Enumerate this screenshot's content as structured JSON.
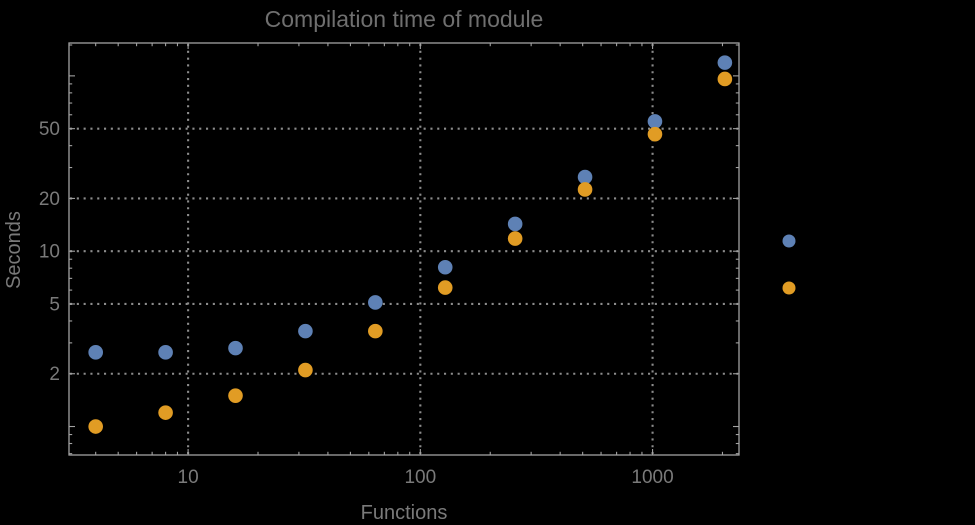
{
  "page": {
    "background": "#000000"
  },
  "colors": {
    "background": "#000000",
    "frame": "#a2a2a2",
    "grid": "#8c8c8c",
    "tick_text": "#7a7a7a",
    "title_text": "#6f6f6f",
    "series1": "#5e81b5",
    "series2": "#e19c24"
  },
  "chart_data": {
    "type": "scatter",
    "title": "Compilation time of module",
    "xlabel": "Functions",
    "ylabel": "Seconds",
    "xscale": "log",
    "yscale": "log",
    "xlim": [
      3.07,
      2356
    ],
    "ylim": [
      0.688,
      154
    ],
    "x": [
      4,
      8,
      16,
      32,
      64,
      128,
      256,
      512,
      1024,
      2048
    ],
    "series": [
      {
        "name": "series-1-blue",
        "color": "#5e81b5",
        "values": [
          2.65,
          2.65,
          2.8,
          3.5,
          5.1,
          8.1,
          14.3,
          26.5,
          55,
          119
        ]
      },
      {
        "name": "series-2-orange",
        "color": "#e19c24",
        "values": [
          1.0,
          1.2,
          1.5,
          2.1,
          3.5,
          6.2,
          11.8,
          22.5,
          46.5,
          96
        ]
      }
    ],
    "x_ticks": {
      "major": [
        10,
        100,
        1000
      ],
      "major_labels": [
        "10",
        "100",
        "1000"
      ],
      "minor": [
        4,
        5,
        6,
        7,
        8,
        9,
        20,
        30,
        40,
        50,
        60,
        70,
        80,
        90,
        200,
        300,
        400,
        500,
        600,
        700,
        800,
        900,
        2000
      ]
    },
    "y_ticks": {
      "major": [
        2,
        5,
        10,
        20,
        50
      ],
      "major_labels": [
        "2",
        "5",
        "10",
        "20",
        "50"
      ],
      "decade_unlabeled": [
        1,
        100
      ],
      "minor": [
        0.7,
        0.8,
        0.9,
        3,
        4,
        6,
        7,
        8,
        9,
        30,
        40,
        60,
        70,
        80,
        90,
        150
      ]
    },
    "grid": {
      "x_values": [
        10,
        100,
        1000
      ],
      "y_values": [
        2,
        5,
        10,
        20,
        50
      ],
      "style": "dotted",
      "on": true
    },
    "legend": {
      "position": "right-outside",
      "labels_visible": false,
      "markers": [
        {
          "color": "#5e81b5"
        },
        {
          "color": "#e19c24"
        }
      ]
    }
  }
}
